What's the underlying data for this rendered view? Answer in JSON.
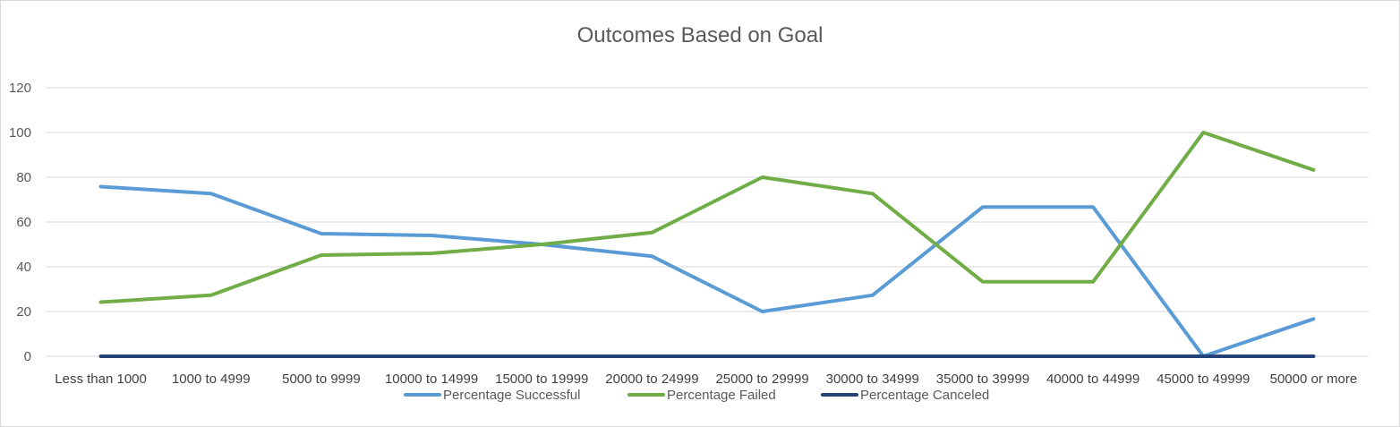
{
  "chart_data": {
    "type": "line",
    "title": "Outcomes Based on Goal",
    "xlabel": "",
    "ylabel": "",
    "ylim": [
      0,
      120
    ],
    "yticks": [
      0,
      20,
      40,
      60,
      80,
      100,
      120
    ],
    "grid": true,
    "legend_position": "bottom",
    "categories": [
      "Less than 1000",
      "1000 to 4999",
      "5000 to 9999",
      "10000 to 14999",
      "15000 to 19999",
      "20000 to 24999",
      "25000 to 29999",
      "30000 to 34999",
      "35000 to 39999",
      "40000 to 44999",
      "45000 to 49999",
      "50000 or more"
    ],
    "series": [
      {
        "name": "Percentage Successful",
        "color": "#5b9bd5",
        "values": [
          75.8,
          72.7,
          54.8,
          54.0,
          50.0,
          44.7,
          20.0,
          27.3,
          66.7,
          66.7,
          0.0,
          16.7
        ]
      },
      {
        "name": "Percentage Failed",
        "color": "#70ad47",
        "values": [
          24.2,
          27.3,
          45.2,
          46.0,
          50.0,
          55.3,
          80.0,
          72.7,
          33.3,
          33.3,
          100.0,
          83.3
        ]
      },
      {
        "name": "Percentage Canceled",
        "color": "#264478",
        "values": [
          0,
          0,
          0,
          0,
          0,
          0,
          0,
          0,
          0,
          0,
          0,
          0
        ]
      }
    ]
  }
}
